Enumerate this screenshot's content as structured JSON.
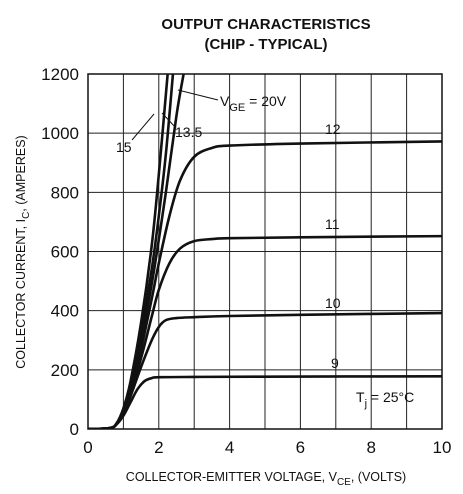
{
  "chart_data": {
    "type": "line",
    "title_line1": "OUTPUT CHARACTERISTICS",
    "title_line2": "(CHIP - TYPICAL)",
    "xlabel_main": "COLLECTOR-EMITTER VOLTAGE, V",
    "xlabel_sub": "CE",
    "xlabel_tail": ", (VOLTS)",
    "ylabel_main": "COLLECTOR CURRENT, I",
    "ylabel_sub": "C",
    "ylabel_tail": ", (AMPERES)",
    "xlim": [
      0,
      10
    ],
    "ylim": [
      0,
      1200
    ],
    "x_ticks": [
      "0",
      "2",
      "4",
      "6",
      "8",
      "10"
    ],
    "y_ticks": [
      "0",
      "200",
      "400",
      "600",
      "800",
      "1000",
      "1200"
    ],
    "x_tick_values": [
      0,
      2,
      4,
      6,
      8,
      10
    ],
    "y_tick_values": [
      0,
      200,
      400,
      600,
      800,
      1000,
      1200
    ],
    "grid": true,
    "annotation_main": "T",
    "annotation_sub": "j",
    "annotation_tail": " = 25°C",
    "series": [
      {
        "label": "9",
        "x": [
          0,
          0.6,
          0.8,
          1.0,
          1.2,
          1.4,
          1.6,
          1.8,
          2.0,
          3.0,
          5.0,
          10
        ],
        "y": [
          0,
          3,
          15,
          45,
          90,
          135,
          162,
          172,
          175,
          176,
          177,
          178
        ]
      },
      {
        "label": "10",
        "x": [
          0,
          0.6,
          0.8,
          1.0,
          1.2,
          1.5,
          1.8,
          2.0,
          2.2,
          2.5,
          3.0,
          4.0,
          6.0,
          10
        ],
        "y": [
          0,
          3,
          15,
          50,
          110,
          210,
          300,
          345,
          368,
          375,
          378,
          382,
          386,
          392
        ]
      },
      {
        "label": "11",
        "x": [
          0,
          0.6,
          0.8,
          1.0,
          1.2,
          1.5,
          1.8,
          2.0,
          2.3,
          2.6,
          3.0,
          3.5,
          4.0,
          6.0,
          10
        ],
        "y": [
          0,
          3,
          15,
          55,
          120,
          240,
          380,
          470,
          560,
          610,
          635,
          642,
          645,
          648,
          652
        ]
      },
      {
        "label": "12",
        "x": [
          0,
          0.6,
          0.8,
          1.0,
          1.2,
          1.5,
          1.8,
          2.0,
          2.3,
          2.6,
          3.0,
          3.5,
          4.0,
          6.0,
          10
        ],
        "y": [
          0,
          3,
          15,
          58,
          130,
          270,
          440,
          560,
          720,
          840,
          920,
          950,
          958,
          965,
          972
        ]
      },
      {
        "label": "13.5",
        "x": [
          0,
          0.6,
          0.8,
          1.0,
          1.2,
          1.5,
          1.8,
          2.0,
          2.2,
          2.5,
          2.7
        ],
        "y": [
          0,
          3,
          16,
          62,
          140,
          300,
          490,
          640,
          800,
          1060,
          1200
        ]
      },
      {
        "label": "15",
        "x": [
          0,
          0.6,
          0.8,
          1.0,
          1.2,
          1.5,
          1.8,
          2.0,
          2.2,
          2.4
        ],
        "y": [
          0,
          3,
          17,
          66,
          150,
          330,
          540,
          720,
          930,
          1200
        ]
      },
      {
        "label": "V_GE = 20V",
        "x": [
          0,
          0.6,
          0.8,
          1.0,
          1.2,
          1.5,
          1.8,
          2.0,
          2.25
        ],
        "y": [
          0,
          3,
          18,
          70,
          160,
          360,
          620,
          860,
          1200
        ]
      }
    ],
    "curve_labels": {
      "l9": "9",
      "l10": "10",
      "l11": "11",
      "l12": "12",
      "l135": "13.5",
      "l15": "15",
      "vge_main": "V",
      "vge_sub": "GE",
      "vge_tail": " = 20V"
    }
  }
}
